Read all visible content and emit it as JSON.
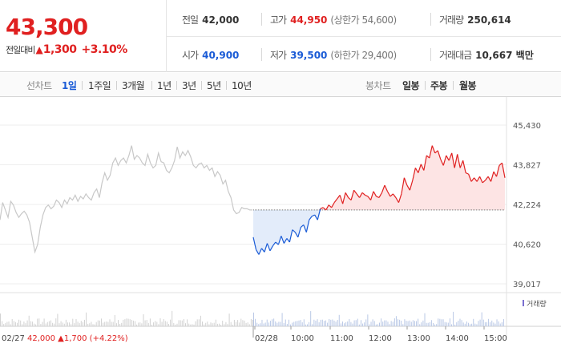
{
  "header": {
    "current_price": "43,300",
    "change_label": "전일대비",
    "change_triangle": "▲",
    "change_amount": "1,300",
    "change_percent": "+3.10%",
    "prev_close_label": "전일",
    "prev_close": "42,000",
    "open_label": "시가",
    "open": "40,900",
    "high_label": "고가",
    "high": "44,950",
    "upper_limit": "(상한가 54,600)",
    "low_label": "저가",
    "low": "39,500",
    "lower_limit": "(하한가 29,400)",
    "volume_label": "거래량",
    "volume": "250,614",
    "amount_label": "거래대금",
    "amount": "10,667 백만"
  },
  "toolbar": {
    "line_chart_label": "선차트",
    "periods": [
      "1일",
      "1주일",
      "3개월",
      "1년",
      "3년",
      "5년",
      "10년"
    ],
    "active_period": "1일",
    "candle_chart_label": "봉차트",
    "candle_periods": [
      "일봉",
      "주봉",
      "월봉"
    ]
  },
  "colors": {
    "up": "#e02020",
    "down": "#1a5bd6",
    "prev_day": "#c8c8c8"
  },
  "chart_data": {
    "type": "line",
    "y_ticks": [
      "45,430",
      "43,827",
      "42,224",
      "40,620",
      "39,017"
    ],
    "y_tick_values": [
      45430,
      43827,
      42224,
      40620,
      39017
    ],
    "reference_price": 42000,
    "x_tick_labels": [
      "02/28",
      "10:00",
      "11:00",
      "12:00",
      "13:00",
      "14:00",
      "15:00"
    ],
    "prev_day_label": "02/27",
    "prev_day_close": "42,000",
    "prev_day_triangle": "▲",
    "prev_day_change": "1,700",
    "prev_day_change_pct": "(+4.22%)",
    "volume_legend": "거래량",
    "series": [
      {
        "name": "02/27",
        "values": [
          41600,
          42300,
          42000,
          41700,
          42350,
          42200,
          41900,
          41700,
          41850,
          41950,
          41800,
          41500,
          40900,
          40300,
          40600,
          41300,
          41800,
          42100,
          42200,
          42050,
          42150,
          42400,
          42300,
          42100,
          42400,
          42250,
          42500,
          42400,
          42600,
          42350,
          42550,
          42450,
          42650,
          42500,
          42400,
          42700,
          42850,
          42500,
          43100,
          43500,
          43200,
          43400,
          43900,
          44100,
          43800,
          44000,
          44100,
          43900,
          44200,
          44600,
          44050,
          44200,
          44100,
          43900,
          43800,
          44250,
          43900,
          43700,
          43800,
          44300,
          43950,
          43900,
          43600,
          43500,
          43700,
          44000,
          44550,
          44100,
          44350,
          44200,
          44400,
          44150,
          43800,
          43700,
          43850,
          43900,
          43700,
          43800,
          43600,
          43700,
          43350,
          43550,
          43400,
          43050,
          43200,
          42750,
          42500,
          42000,
          41850,
          41900,
          42100,
          42050,
          42050,
          42000,
          42000
        ]
      },
      {
        "name": "02/28",
        "values": [
          40900,
          40400,
          40200,
          40450,
          40300,
          40650,
          40350,
          40550,
          40700,
          40600,
          40950,
          40650,
          40850,
          40700,
          41200,
          41100,
          40900,
          41300,
          41400,
          41100,
          41600,
          41750,
          41800,
          41600,
          42050,
          42100,
          42000,
          42200,
          42100,
          42300,
          42450,
          42600,
          42250,
          42700,
          42500,
          42400,
          42800,
          42650,
          42500,
          42700,
          42600,
          42550,
          42400,
          42750,
          42550,
          42500,
          42700,
          43000,
          42750,
          42550,
          42650,
          42500,
          42300,
          42650,
          43300,
          43000,
          42800,
          43200,
          43700,
          43500,
          43850,
          43600,
          44200,
          44100,
          44600,
          44300,
          44400,
          44050,
          43800,
          44200,
          44000,
          44300,
          43700,
          44250,
          43700,
          44000,
          43500,
          43450,
          43150,
          43300,
          43150,
          43350,
          43100,
          43200,
          43350,
          43150,
          43550,
          43350,
          43800,
          43900,
          43300
        ]
      }
    ]
  }
}
